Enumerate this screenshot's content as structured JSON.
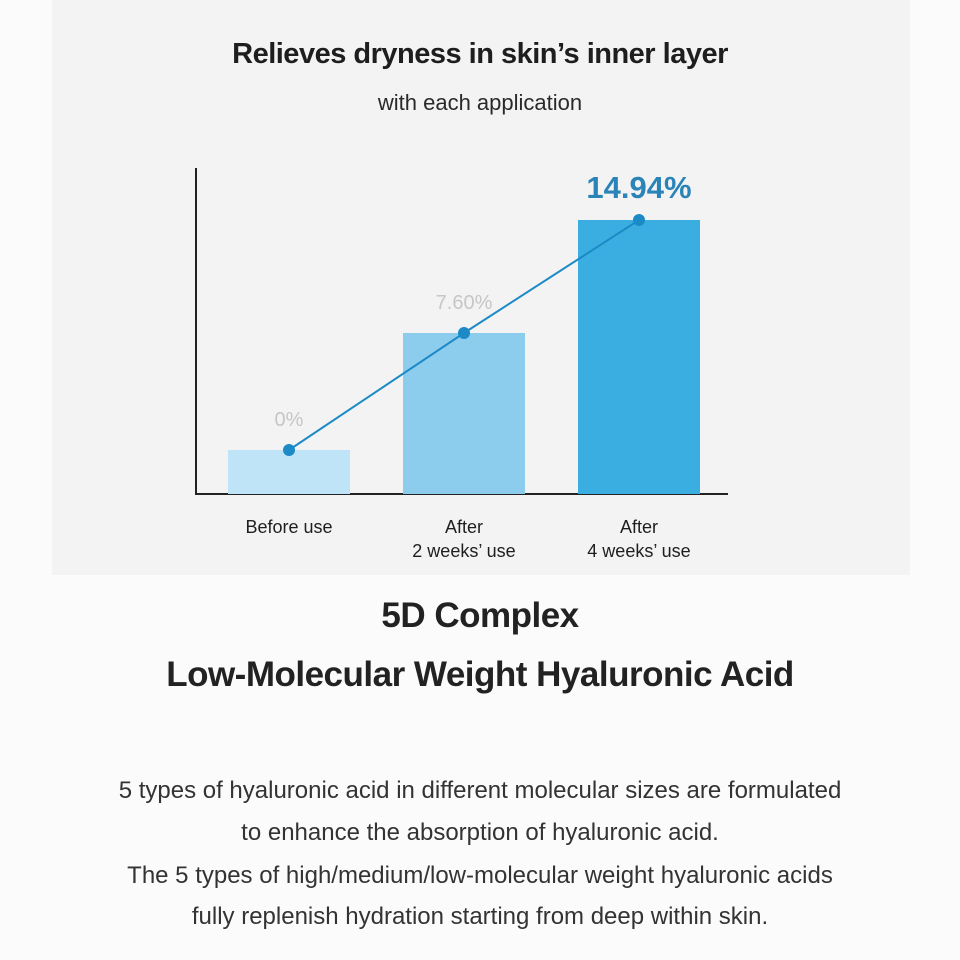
{
  "chart_data": {
    "type": "bar",
    "title": "Relieves dryness in skin’s inner layer",
    "subtitle": "with each application",
    "categories": [
      [
        "Before use"
      ],
      [
        "After",
        "2 weeks’ use"
      ],
      [
        "After",
        "4 weeks’ use"
      ]
    ],
    "values": [
      0,
      7.6,
      14.94
    ],
    "data_labels": [
      "0%",
      "7.60%",
      "14.94%"
    ],
    "overlay_line": true,
    "xlabel": "",
    "ylabel": "",
    "grid": false,
    "colors": {
      "bars": [
        "#bfe3f7",
        "#8ccdee",
        "#3aaee0"
      ],
      "line": "#1b8ac7",
      "highlight_label": "#2a84b8",
      "muted_label": "#c6c6c6"
    }
  },
  "heading": {
    "line1": "5D Complex",
    "line2": "Low-Molecular Weight Hyaluronic Acid"
  },
  "paragraph": [
    "5 types of hyaluronic acid in different molecular sizes are formulated",
    "to enhance the absorption of hyaluronic acid.",
    "The 5 types of high/medium/low-molecular weight hyaluronic acids",
    "fully replenish hydration starting from deep within skin."
  ]
}
